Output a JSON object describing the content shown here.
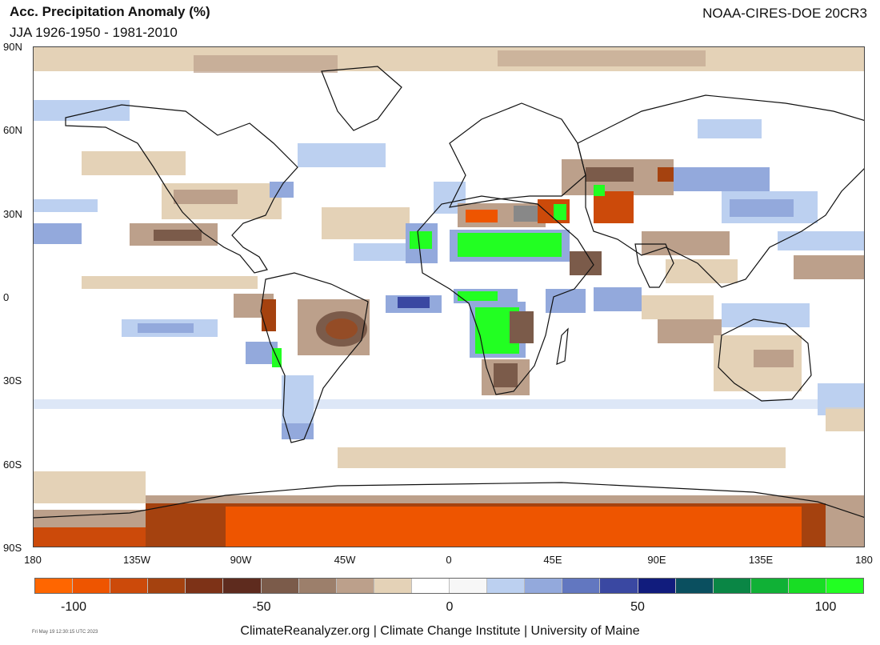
{
  "header": {
    "title": "Acc. Precipitation Anomaly (%)",
    "subtitle": "JJA 1926-1950 - 1981-2010",
    "source": "NOAA-CIRES-DOE 20CR3"
  },
  "lat_labels": [
    "90N",
    "60N",
    "30N",
    "0",
    "30S",
    "60S",
    "90S"
  ],
  "lon_labels": [
    "180",
    "135W",
    "90W",
    "45W",
    "0",
    "45E",
    "90E",
    "135E",
    "180"
  ],
  "colorbar": {
    "colors": [
      "#ff6600",
      "#ee5500",
      "#cc4a0a",
      "#a5420f",
      "#7d3217",
      "#5e2b1e",
      "#7b5b4a",
      "#9c7f6b",
      "#bca08b",
      "#e4d2b7",
      "#ffffff",
      "#f7f7f7",
      "#bcd0f0",
      "#93a9dc",
      "#6277c0",
      "#3a48a2",
      "#111c7d",
      "#0a4f5f",
      "#0a8645",
      "#10b136",
      "#18dd24",
      "#22ff22"
    ],
    "tick_labels": [
      "-100",
      "-50",
      "0",
      "50",
      "100"
    ]
  },
  "map_palette": {
    "ocean": "#ffffff",
    "land_outline": "#111111",
    "dry_light": "#e4d2b7",
    "dry_mid": "#bca08b",
    "dry_dark": "#7b5b4a",
    "dry_strong": "#a5420f",
    "dry_extreme": "#ee5500",
    "wet_light": "#bcd0f0",
    "wet_mid": "#93a9dc",
    "wet_strong": "#3a48a2",
    "wet_extreme": "#22ff22"
  },
  "footer": {
    "text": "ClimateReanalyzer.org | Climate Change Institute | University of Maine",
    "timestamp": "Fri May 19 12:30:15 UTC 2023"
  }
}
